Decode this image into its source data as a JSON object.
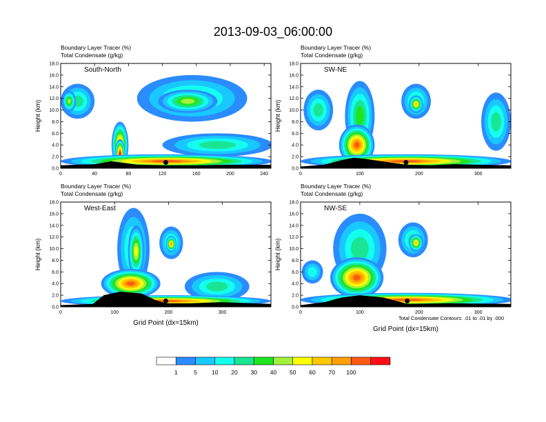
{
  "title": "2013-09-03_06:00:00",
  "colors": {
    "scale": [
      "#ffffff",
      "#2a8cff",
      "#19c8ff",
      "#14ffee",
      "#19e594",
      "#1ee61e",
      "#a3f03c",
      "#ffff00",
      "#ffc800",
      "#ffa000",
      "#ff5a14",
      "#ff0f14"
    ],
    "terrain": "#000000",
    "contour": "#000000"
  },
  "colorbar": {
    "labels": [
      "1",
      "5",
      "10",
      "20",
      "30",
      "40",
      "50",
      "60",
      "70",
      "100"
    ]
  },
  "footer_note": "Total Condensate Contours: .01 to .01 by .000",
  "chart_data": [
    {
      "type": "heatmap",
      "name": "South-North",
      "subtitle_1": "Boundary Layer Tracer   (%)",
      "subtitle_2": "Total Condensate   (g/kg)",
      "ylabel": "Height (km)",
      "xlabel": "",
      "xlim": [
        0,
        248
      ],
      "ylim": [
        0,
        18
      ],
      "xticks": [
        "0",
        "40",
        "80",
        "120",
        "160",
        "200",
        "240"
      ],
      "xtick_values": [
        0,
        40,
        80,
        120,
        160,
        200,
        240
      ],
      "yticks": [
        "0.0",
        "2.0",
        "4.0",
        "6.0",
        "8.0",
        "10.0",
        "12.0",
        "14.0",
        "16.0",
        "18.0"
      ],
      "marker": [
        124,
        1.0
      ],
      "terrain": [
        [
          0,
          0.5
        ],
        [
          20,
          0.6
        ],
        [
          40,
          0.7
        ],
        [
          60,
          1.2
        ],
        [
          75,
          0.9
        ],
        [
          90,
          0.6
        ],
        [
          124,
          0.5
        ],
        [
          160,
          0.5
        ],
        [
          200,
          0.6
        ],
        [
          248,
          0.6
        ]
      ],
      "blobs": [
        {
          "x": 20,
          "y": 11.5,
          "rx": 20,
          "ry": 3.0,
          "level": 4
        },
        {
          "x": 10,
          "y": 11.5,
          "rx": 8,
          "ry": 1.8,
          "level": 6
        },
        {
          "x": 70,
          "y": 4.0,
          "rx": 10,
          "ry": 4.0,
          "level": 9
        },
        {
          "x": 70,
          "y": 2.5,
          "rx": 6,
          "ry": 2.5,
          "level": 11
        },
        {
          "x": 155,
          "y": 12.0,
          "rx": 65,
          "ry": 4.0,
          "level": 4
        },
        {
          "x": 150,
          "y": 11.5,
          "rx": 35,
          "ry": 2.0,
          "level": 6
        },
        {
          "x": 185,
          "y": 4.0,
          "rx": 65,
          "ry": 2.0,
          "level": 4
        },
        {
          "x": 125,
          "y": 1.2,
          "rx": 125,
          "ry": 1.2,
          "level": 10
        }
      ]
    },
    {
      "type": "heatmap",
      "name": "SW-NE",
      "subtitle_1": "Boundary Layer Tracer   (%)",
      "subtitle_2": "Total Condensate   (g/kg)",
      "ylabel": "Height (km)",
      "xlabel": "",
      "xlim": [
        0,
        355
      ],
      "ylim": [
        0,
        18
      ],
      "xticks": [
        "0",
        "100",
        "200",
        "300"
      ],
      "xtick_values": [
        0,
        100,
        200,
        300
      ],
      "yticks": [
        "0.0",
        "2.0",
        "4.0",
        "6.0",
        "8.0",
        "10.0",
        "12.0",
        "14.0",
        "16.0",
        "18.0"
      ],
      "marker": [
        178,
        1.0
      ],
      "terrain": [
        [
          0,
          0.3
        ],
        [
          40,
          0.6
        ],
        [
          70,
          1.4
        ],
        [
          90,
          1.8
        ],
        [
          110,
          1.6
        ],
        [
          150,
          1.0
        ],
        [
          178,
          0.6
        ],
        [
          220,
          0.5
        ],
        [
          260,
          0.7
        ],
        [
          300,
          0.6
        ],
        [
          355,
          0.5
        ]
      ],
      "blobs": [
        {
          "x": 30,
          "y": 10.0,
          "rx": 25,
          "ry": 3.5,
          "level": 4
        },
        {
          "x": 100,
          "y": 9.0,
          "rx": 25,
          "ry": 6.0,
          "level": 5
        },
        {
          "x": 95,
          "y": 4.0,
          "rx": 30,
          "ry": 3.5,
          "level": 10
        },
        {
          "x": 195,
          "y": 11.5,
          "rx": 25,
          "ry": 3.0,
          "level": 4
        },
        {
          "x": 195,
          "y": 11.0,
          "rx": 12,
          "ry": 1.5,
          "level": 8
        },
        {
          "x": 330,
          "y": 8.0,
          "rx": 25,
          "ry": 5.0,
          "level": 4
        },
        {
          "x": 178,
          "y": 1.2,
          "rx": 178,
          "ry": 1.2,
          "level": 10
        }
      ]
    },
    {
      "type": "heatmap",
      "name": "West-East",
      "subtitle_1": "Boundary Layer Tracer   (%)",
      "subtitle_2": "Total Condensate   (g/kg)",
      "ylabel": "Height (km)",
      "xlabel": "Grid Point (dx=15km)",
      "xlim": [
        0,
        390
      ],
      "ylim": [
        0,
        18
      ],
      "xticks": [
        "0",
        "100",
        "200",
        "300"
      ],
      "xtick_values": [
        0,
        100,
        200,
        300
      ],
      "yticks": [
        "0.0",
        "2.0",
        "4.0",
        "6.0",
        "8.0",
        "10.0",
        "12.0",
        "14.0",
        "16.0",
        "18.0"
      ],
      "marker": [
        195,
        1.0
      ],
      "terrain": [
        [
          0,
          0.3
        ],
        [
          60,
          0.5
        ],
        [
          80,
          2.0
        ],
        [
          110,
          2.6
        ],
        [
          150,
          2.3
        ],
        [
          175,
          1.2
        ],
        [
          195,
          0.6
        ],
        [
          240,
          0.6
        ],
        [
          300,
          0.8
        ],
        [
          390,
          0.5
        ]
      ],
      "blobs": [
        {
          "x": 135,
          "y": 10.0,
          "rx": 30,
          "ry": 7.0,
          "level": 4
        },
        {
          "x": 140,
          "y": 9.5,
          "rx": 15,
          "ry": 4.5,
          "level": 7
        },
        {
          "x": 130,
          "y": 4.0,
          "rx": 55,
          "ry": 2.5,
          "level": 10
        },
        {
          "x": 205,
          "y": 11.0,
          "rx": 22,
          "ry": 2.8,
          "level": 4
        },
        {
          "x": 205,
          "y": 10.8,
          "rx": 10,
          "ry": 1.4,
          "level": 9
        },
        {
          "x": 290,
          "y": 3.5,
          "rx": 60,
          "ry": 2.5,
          "level": 4
        },
        {
          "x": 195,
          "y": 1.0,
          "rx": 195,
          "ry": 1.0,
          "level": 10
        }
      ]
    },
    {
      "type": "heatmap",
      "name": "NW-SE",
      "subtitle_1": "Boundary Layer Tracer   (%)",
      "subtitle_2": "Total Condensate   (g/kg)",
      "ylabel": "Height (km)",
      "xlabel": "Grid Point (dx=15km)",
      "xlim": [
        0,
        355
      ],
      "ylim": [
        0,
        18
      ],
      "xticks": [
        "0",
        "100",
        "200",
        "300"
      ],
      "xtick_values": [
        0,
        100,
        200,
        300
      ],
      "yticks": [
        "0.0",
        "2.0",
        "4.0",
        "6.0",
        "8.0",
        "10.0",
        "12.0",
        "14.0",
        "16.0",
        "18.0"
      ],
      "marker": [
        180,
        1.0
      ],
      "terrain": [
        [
          0,
          0.3
        ],
        [
          40,
          0.8
        ],
        [
          70,
          1.6
        ],
        [
          100,
          2.0
        ],
        [
          140,
          1.6
        ],
        [
          170,
          0.8
        ],
        [
          180,
          0.5
        ],
        [
          250,
          0.6
        ],
        [
          355,
          0.5
        ]
      ],
      "blobs": [
        {
          "x": 100,
          "y": 10.0,
          "rx": 45,
          "ry": 6.0,
          "level": 4
        },
        {
          "x": 95,
          "y": 5.0,
          "rx": 45,
          "ry": 3.5,
          "level": 10
        },
        {
          "x": 190,
          "y": 11.5,
          "rx": 25,
          "ry": 3.0,
          "level": 4
        },
        {
          "x": 195,
          "y": 11.0,
          "rx": 12,
          "ry": 1.5,
          "level": 8
        },
        {
          "x": 20,
          "y": 6.0,
          "rx": 18,
          "ry": 2.0,
          "level": 3
        },
        {
          "x": 180,
          "y": 1.2,
          "rx": 180,
          "ry": 1.2,
          "level": 10
        }
      ]
    }
  ]
}
